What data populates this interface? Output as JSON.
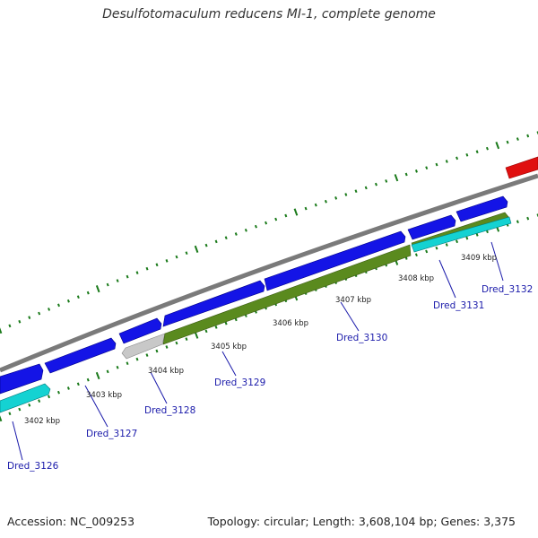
{
  "title": "Desulfotomaculum reducens MI-1, complete genome",
  "footer": {
    "accession": "Accession: NC_009253",
    "summary": "Topology: circular; Length: 3,608,104 bp; Genes: 3,375"
  },
  "colors": {
    "cds_forward": "#1414e6",
    "cds_reverse": "#14d2d2",
    "cds_highlight": "#5a8a1e",
    "pseudogene": "#c8c8c8",
    "rna": "#e01010",
    "backbone": "#888888",
    "tick": "#1a7a1a",
    "label": "#1a1aaa"
  },
  "scale_labels": [
    "3402 kbp",
    "3403 kbp",
    "3404 kbp",
    "3405 kbp",
    "3406 kbp",
    "3407 kbp",
    "3408 kbp",
    "3409 kbp"
  ],
  "gene_labels": [
    "Dred_3126",
    "Dred_3127",
    "Dred_3128",
    "Dred_3129",
    "Dred_3130",
    "Dred_3131",
    "Dred_3132"
  ]
}
